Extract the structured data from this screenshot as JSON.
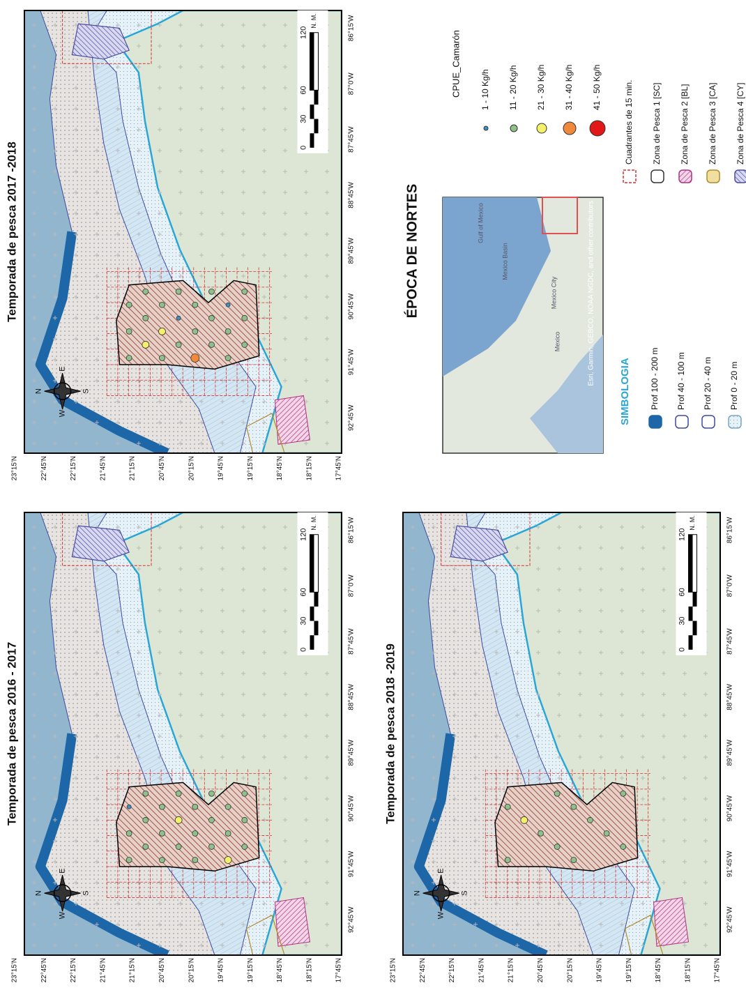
{
  "panels": [
    {
      "title": "Temporada de pesca 2017 -2018"
    },
    {
      "title": "Temporada de pesca 2016 - 2017"
    },
    {
      "title": "Temporada de pesca 2018 -2019"
    }
  ],
  "lat_labels": [
    "23°15'N",
    "22°45'N",
    "22°15'N",
    "21°45'N",
    "21°15'N",
    "20°45'N",
    "20°15'N",
    "19°45'N",
    "19°15'N",
    "18°45'N",
    "18°15'N",
    "17°45'N"
  ],
  "lon_labels": [
    "92°45'W",
    "91°45'W",
    "90°45'W",
    "89°45'W",
    "88°45'W",
    "87°45'W",
    "87°0'W",
    "86°15'W"
  ],
  "compass": [
    "N",
    "E",
    "S",
    "W"
  ],
  "scale_labels": [
    "0",
    "30",
    "60",
    "120"
  ],
  "scale_unit": "N. M.",
  "heading": "ÉPOCA DE NORTES",
  "inset": {
    "labels": [
      "Gulf of Mexico",
      "Mexico Basin",
      "Mexico",
      "Mexico City"
    ],
    "attribution": "Esri, Garmin, GEBCO, NOAA NGDC, and other contributors"
  },
  "cpue_legend": {
    "title": "CPUE_Camarón",
    "items": [
      {
        "label": "1 - 10 Kg/h",
        "color": "#3f8fc0"
      },
      {
        "label": "11 - 20 Kg/h",
        "color": "#8fbf8a"
      },
      {
        "label": "21 - 30 Kg/h",
        "color": "#f5f06a"
      },
      {
        "label": "31 - 40 Kg/h",
        "color": "#f08a3a"
      },
      {
        "label": "41 - 50 Kg/h",
        "color": "#e01818"
      }
    ]
  },
  "zones_legend": [
    "Cuadrantes de 15 min.",
    "Zona de Pesca 1 [SC]",
    "Zona de Pesca 2 [BL]",
    "Zona de Pesca 3 [CA]",
    "Zona de Pesca 4 [CY]"
  ],
  "depth_legend": {
    "title": "SIMBOLOGIA",
    "items": [
      "Prof 100 - 200  m",
      "Prof 40 - 100  m",
      "Prof 20 - 40  m",
      "Prof 0 - 20  m"
    ]
  }
}
